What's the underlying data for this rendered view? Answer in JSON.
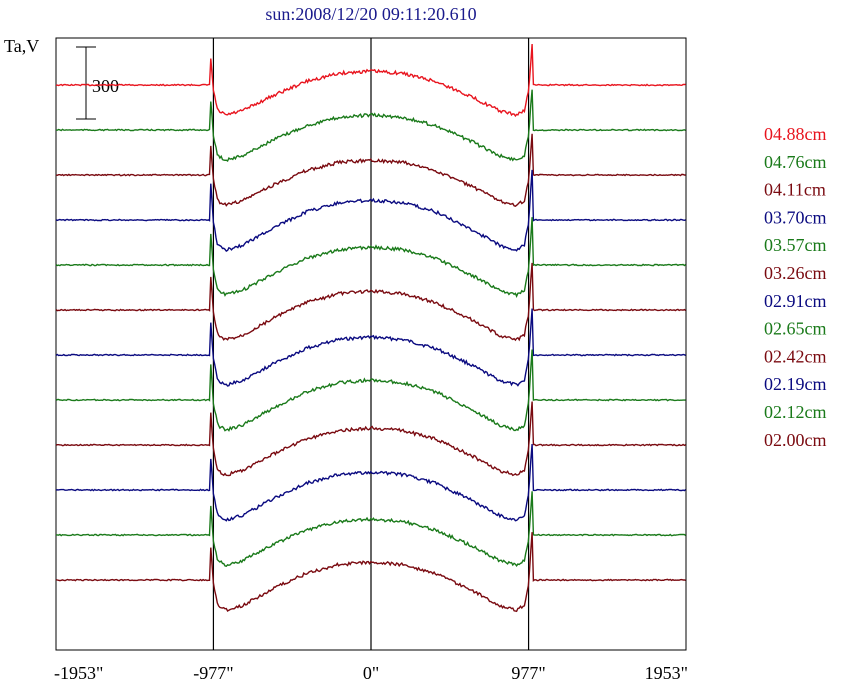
{
  "chart_data": {
    "type": "line",
    "title": "sun:2008/12/20 09:11:20.610",
    "ylabel": "Ta,V",
    "xlabel": "",
    "xlim": [
      -1953,
      1953
    ],
    "x_ticks": [
      {
        "value": -1953,
        "label": "-1953\""
      },
      {
        "value": -977,
        "label": "-977\""
      },
      {
        "value": 0,
        "label": "0\""
      },
      {
        "value": 977,
        "label": "977\""
      },
      {
        "value": 1953,
        "label": "1953\""
      }
    ],
    "vertical_markers": [
      -977,
      0,
      977
    ],
    "scale_bar": {
      "value": 300,
      "label": "300"
    },
    "grid": false,
    "legend_position": "right",
    "profile": {
      "x": [
        -1953,
        -1400,
        -1000,
        -977,
        -950,
        -900,
        -800,
        -600,
        -400,
        -200,
        0,
        200,
        400,
        600,
        800,
        900,
        950,
        977,
        1000,
        1400,
        1953
      ],
      "shape": [
        1.0,
        1.0,
        0.9,
        0.3,
        0.05,
        0.0,
        0.05,
        0.25,
        0.42,
        0.52,
        0.55,
        0.52,
        0.42,
        0.25,
        0.05,
        0.0,
        0.05,
        0.3,
        0.9,
        1.0,
        1.0
      ]
    },
    "series": [
      {
        "name": "04.88cm",
        "color": "#e8141e",
        "baseline": 85,
        "disk_center": 71
      },
      {
        "name": "04.76cm",
        "color": "#1a7a1a",
        "baseline": 130,
        "disk_center": 115
      },
      {
        "name": "04.11cm",
        "color": "#7a0a10",
        "baseline": 175,
        "disk_center": 160
      },
      {
        "name": "03.70cm",
        "color": "#0a0a80",
        "baseline": 220,
        "disk_center": 200
      },
      {
        "name": "03.57cm",
        "color": "#1a7a1a",
        "baseline": 265,
        "disk_center": 247
      },
      {
        "name": "03.26cm",
        "color": "#7a0a10",
        "baseline": 310,
        "disk_center": 291
      },
      {
        "name": "02.91cm",
        "color": "#0a0a80",
        "baseline": 355,
        "disk_center": 337
      },
      {
        "name": "02.65cm",
        "color": "#1a7a1a",
        "baseline": 400,
        "disk_center": 380
      },
      {
        "name": "02.42cm",
        "color": "#7a0a10",
        "baseline": 445,
        "disk_center": 428
      },
      {
        "name": "02.19cm",
        "color": "#0a0a80",
        "baseline": 490,
        "disk_center": 472
      },
      {
        "name": "02.12cm",
        "color": "#1a7a1a",
        "baseline": 535,
        "disk_center": 519
      },
      {
        "name": "02.00cm",
        "color": "#7a0a10",
        "baseline": 580,
        "disk_center": 562
      }
    ]
  }
}
